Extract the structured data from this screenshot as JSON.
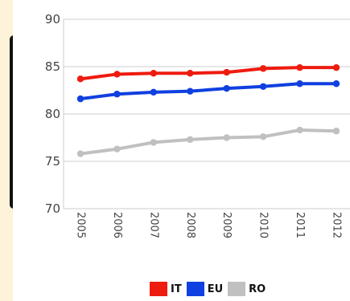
{
  "colors": {
    "page_background": "#fdf3d9",
    "panel_background": "#ffffff",
    "grid": "#cccccc",
    "side_bar": "#111111"
  },
  "chart_data": {
    "type": "line",
    "title": "",
    "xlabel": "",
    "ylabel": "",
    "x": [
      "2005",
      "2006",
      "2007",
      "2008",
      "2009",
      "2010",
      "2011",
      "2012"
    ],
    "ylim": [
      70,
      90
    ],
    "yticks": [
      "70",
      "75",
      "80",
      "85",
      "90"
    ],
    "grid": "horizontal",
    "legend_position": "bottom",
    "series": [
      {
        "name": "IT",
        "color": "#ee1b0f",
        "values": [
          83.7,
          84.2,
          84.3,
          84.3,
          84.4,
          84.8,
          84.9,
          84.9
        ]
      },
      {
        "name": "EU",
        "color": "#1040e0",
        "values": [
          81.6,
          82.1,
          82.3,
          82.4,
          82.7,
          82.9,
          83.2,
          83.2
        ]
      },
      {
        "name": "RO",
        "color": "#c0c0c0",
        "values": [
          75.8,
          76.3,
          77.0,
          77.3,
          77.5,
          77.6,
          78.3,
          78.2
        ]
      }
    ]
  }
}
